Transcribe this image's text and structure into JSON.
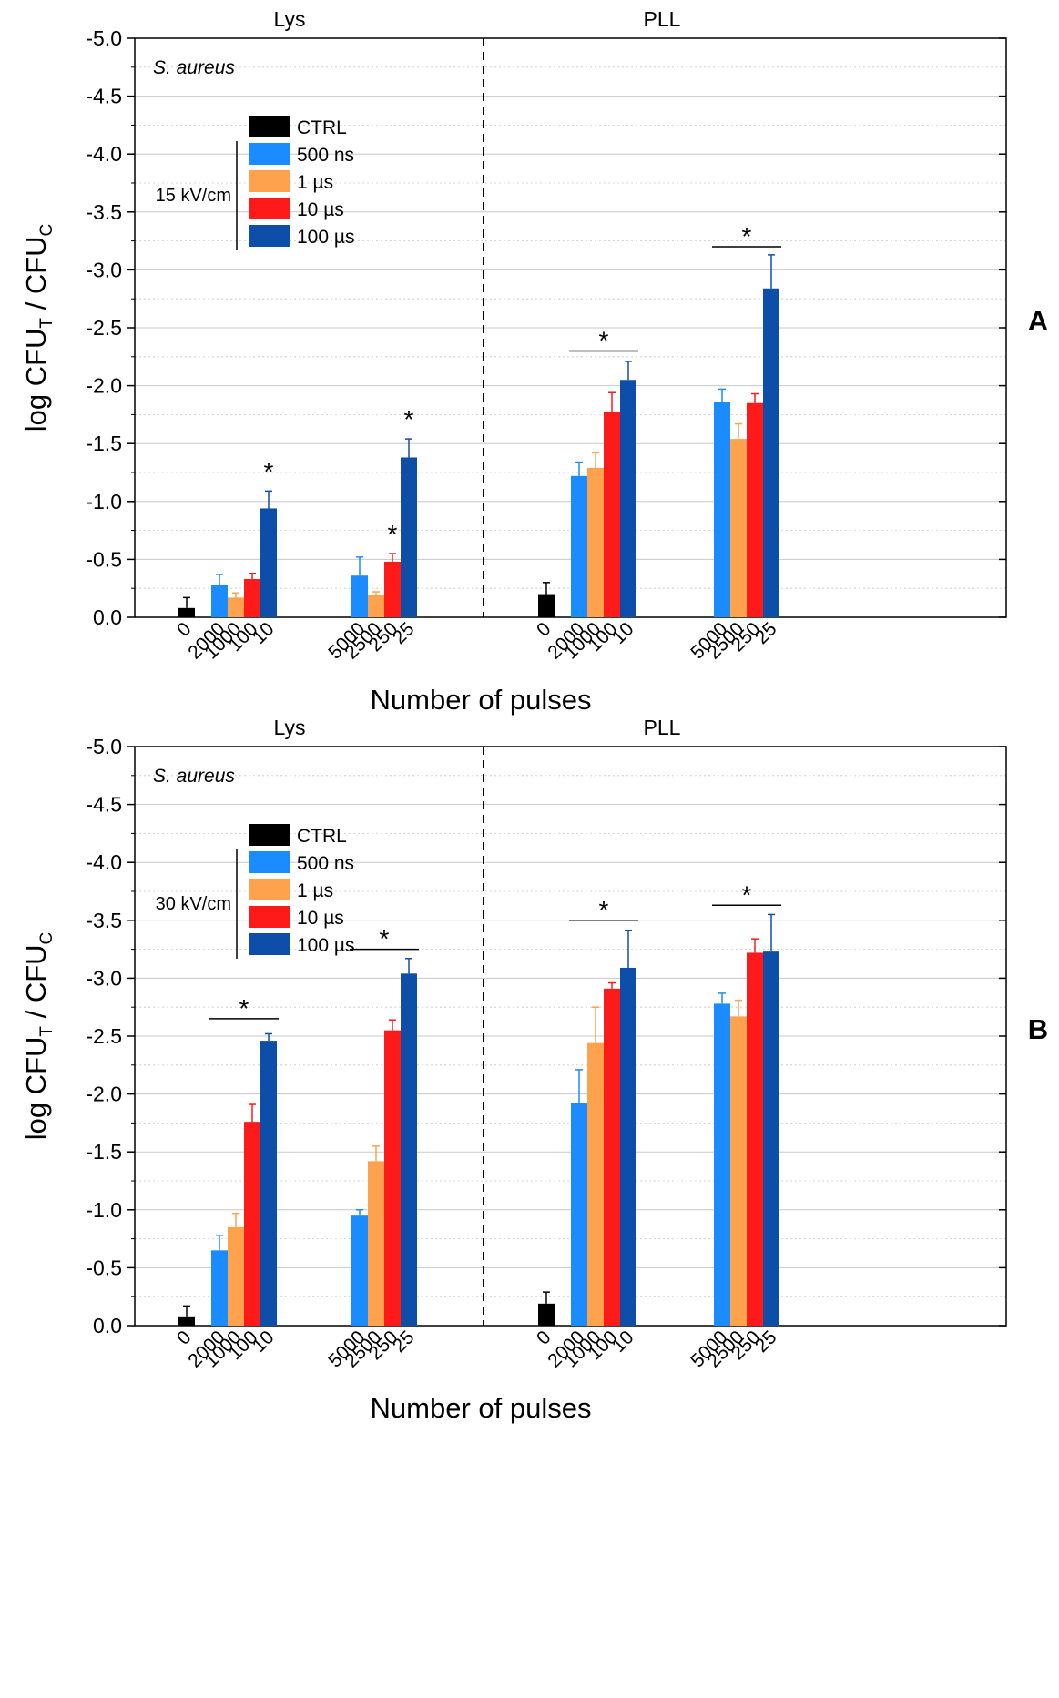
{
  "colors": {
    "CTRL": "#000000",
    "500 ns": "#1a8cff",
    "1 µs": "#ffa24d",
    "10 µs": "#ff1a1a",
    "100 µs": "#0d4fa8",
    "grid": "#c8c8c8",
    "divider": "#000000"
  },
  "shared": {
    "legend_entries": [
      "CTRL",
      "500 ns",
      "1 µs",
      "10 µs",
      "100 µs"
    ],
    "group_labels": [
      "Lys",
      "PLL"
    ],
    "organism_label": "S. aureus",
    "xlabel": "Number of pulses",
    "ylabel_main": "log CFU",
    "ylabel_sub_t": "T",
    "ylabel_sep": " / CFU",
    "ylabel_sub_c": "C",
    "yticks": [
      "-5.0",
      "-4.5",
      "-4.0",
      "-3.5",
      "-3.0",
      "-2.5",
      "-2.0",
      "-1.5",
      "-1.0",
      "-0.5",
      "0.0"
    ],
    "significance_mark": "*"
  },
  "chart_data": [
    {
      "type": "bar",
      "panel_label": "A",
      "field_label": "15 kV/cm",
      "title": "",
      "xlabel": "Number of pulses",
      "ylabel": "log CFU_T / CFU_C",
      "ylim": [
        0.0,
        -5.0
      ],
      "y_inverted": true,
      "grid": true,
      "legend_position": "top-left",
      "sections": [
        {
          "label": "Lys",
          "ctrl": {
            "tick": "0",
            "value": -0.08,
            "error": 0.09
          },
          "groups": [
            {
              "ticks": [
                "2000",
                "1000",
                "100",
                "10"
              ],
              "values": [
                -0.28,
                -0.17,
                -0.33,
                -0.94
              ],
              "errors": [
                0.09,
                0.04,
                0.05,
                0.15
              ]
            },
            {
              "ticks": [
                "5000",
                "2500",
                "250",
                "25"
              ],
              "values": [
                -0.36,
                -0.19,
                -0.48,
                -1.38
              ],
              "errors": [
                0.16,
                0.03,
                0.07,
                0.16
              ]
            }
          ]
        },
        {
          "label": "PLL",
          "ctrl": {
            "tick": "0",
            "value": -0.2,
            "error": 0.1
          },
          "groups": [
            {
              "ticks": [
                "2000",
                "1000",
                "100",
                "10"
              ],
              "values": [
                -1.22,
                -1.29,
                -1.77,
                -2.05
              ],
              "errors": [
                0.12,
                0.13,
                0.17,
                0.16
              ]
            },
            {
              "ticks": [
                "5000",
                "2500",
                "250",
                "25"
              ],
              "values": [
                -1.86,
                -1.54,
                -1.85,
                -2.84
              ],
              "errors": [
                0.11,
                0.13,
                0.08,
                0.29
              ]
            }
          ]
        }
      ],
      "significance": [
        {
          "section": 0,
          "group": 0,
          "type": "star",
          "bar": 3
        },
        {
          "section": 0,
          "group": 1,
          "type": "star",
          "bar": 3
        },
        {
          "section": 0,
          "group": 1,
          "type": "star",
          "bar": 2
        },
        {
          "section": 1,
          "group": 0,
          "type": "bracket",
          "y": -2.3
        },
        {
          "section": 1,
          "group": 1,
          "type": "bracket",
          "y": -3.2
        }
      ]
    },
    {
      "type": "bar",
      "panel_label": "B",
      "field_label": "30 kV/cm",
      "title": "",
      "xlabel": "Number of pulses",
      "ylabel": "log CFU_T / CFU_C",
      "ylim": [
        0.0,
        -5.0
      ],
      "y_inverted": true,
      "grid": true,
      "legend_position": "top-left",
      "sections": [
        {
          "label": "Lys",
          "ctrl": {
            "tick": "0",
            "value": -0.08,
            "error": 0.09
          },
          "groups": [
            {
              "ticks": [
                "2000",
                "1000",
                "100",
                "10"
              ],
              "values": [
                -0.65,
                -0.85,
                -1.76,
                -2.46
              ],
              "errors": [
                0.13,
                0.12,
                0.15,
                0.06
              ]
            },
            {
              "ticks": [
                "5000",
                "2500",
                "250",
                "25"
              ],
              "values": [
                -0.95,
                -1.42,
                -2.55,
                -3.04
              ],
              "errors": [
                0.05,
                0.13,
                0.09,
                0.13
              ]
            }
          ]
        },
        {
          "label": "PLL",
          "ctrl": {
            "tick": "0",
            "value": -0.19,
            "error": 0.1
          },
          "groups": [
            {
              "ticks": [
                "2000",
                "1000",
                "100",
                "10"
              ],
              "values": [
                -1.92,
                -2.44,
                -2.91,
                -3.09
              ],
              "errors": [
                0.29,
                0.31,
                0.05,
                0.32
              ]
            },
            {
              "ticks": [
                "5000",
                "2500",
                "250",
                "25"
              ],
              "values": [
                -2.78,
                -2.67,
                -3.22,
                -3.23
              ],
              "errors": [
                0.09,
                0.14,
                0.12,
                0.32
              ]
            }
          ]
        }
      ],
      "significance": [
        {
          "section": 0,
          "group": 0,
          "type": "bracket",
          "y": -2.65
        },
        {
          "section": 0,
          "group": 1,
          "type": "bracket",
          "y": -3.25
        },
        {
          "section": 1,
          "group": 0,
          "type": "bracket",
          "y": -3.5
        },
        {
          "section": 1,
          "group": 1,
          "type": "bracket",
          "y": -3.63
        }
      ]
    }
  ]
}
